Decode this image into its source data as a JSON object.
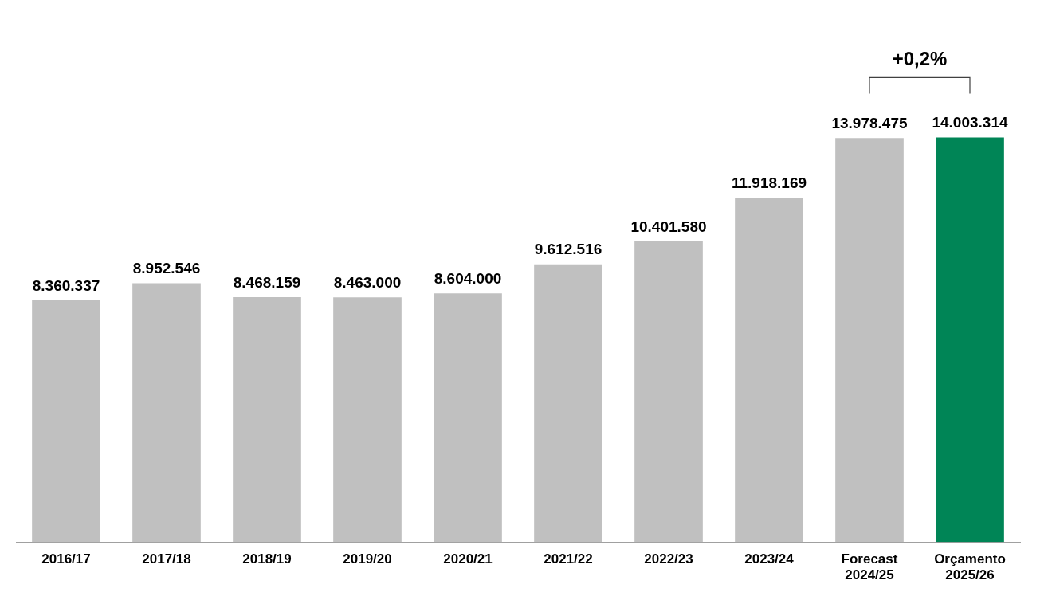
{
  "chart_data": {
    "type": "bar",
    "categories": [
      "2016/17",
      "2017/18",
      "2018/19",
      "2019/20",
      "2020/21",
      "2021/22",
      "2022/23",
      "2023/24",
      "Forecast\n2024/25",
      "Orçamento\n2025/26"
    ],
    "values": [
      8360337,
      8952546,
      8468159,
      8463000,
      8604000,
      9612516,
      10401580,
      11918169,
      13978475,
      14003314
    ],
    "value_labels": [
      "8.360.337",
      "8.952.546",
      "8.468.159",
      "8.463.000",
      "8.604.000",
      "9.612.516",
      "10.401.580",
      "11.918.169",
      "13.978.475",
      "14.003.314"
    ],
    "colors": [
      "#c0c0c0",
      "#c0c0c0",
      "#c0c0c0",
      "#c0c0c0",
      "#c0c0c0",
      "#c0c0c0",
      "#c0c0c0",
      "#c0c0c0",
      "#c0c0c0",
      "#008556"
    ],
    "annotations": [
      "+0,2%"
    ],
    "grid": false,
    "legend": false
  }
}
